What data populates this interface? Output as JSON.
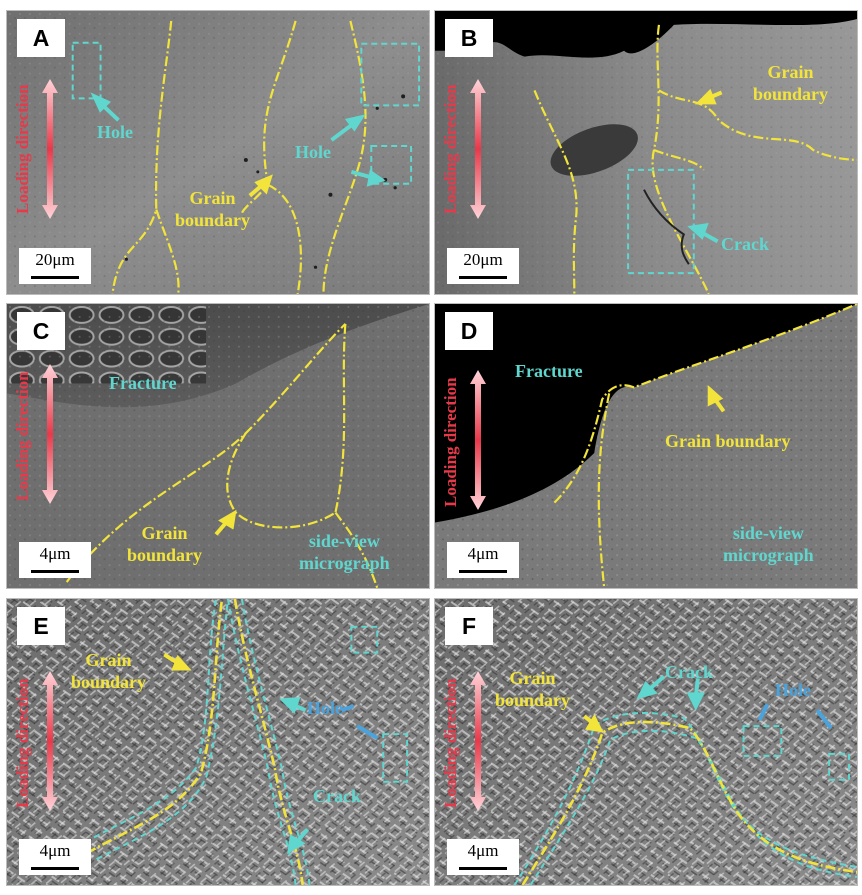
{
  "panels": {
    "A": {
      "label": "A",
      "scale": "20μm",
      "direction": "Loading direction",
      "notes": {
        "hole1": "Hole",
        "hole2": "Hole",
        "grain": "Grain\nboundary"
      }
    },
    "B": {
      "label": "B",
      "scale": "20μm",
      "direction": "Loading direction",
      "notes": {
        "grain": "Grain\nboundary",
        "crack": "Crack"
      }
    },
    "C": {
      "label": "C",
      "scale": "4μm",
      "direction": "Loading direction",
      "notes": {
        "fracture": "Fracture",
        "grain": "Grain\nboundary",
        "side": "side-view\nmicrograph"
      }
    },
    "D": {
      "label": "D",
      "scale": "4μm",
      "direction": "Loading direction",
      "notes": {
        "fracture": "Fracture",
        "grain": "Grain boundary",
        "side": "side-view\nmicrograph"
      }
    },
    "E": {
      "label": "E",
      "scale": "4μm",
      "direction": "Loading direction",
      "notes": {
        "grain": "Grain\nboundary",
        "hole": "Hole",
        "crack": "Crack"
      }
    },
    "F": {
      "label": "F",
      "scale": "4μm",
      "direction": "Loading direction",
      "notes": {
        "grain": "Grain\nboundary",
        "crack": "Crack",
        "hole": "Hole"
      }
    }
  },
  "colors": {
    "grain_boundary": "#f2e43a",
    "crack_hole": "#5fd7cf",
    "hole_blue": "#4aa3dc",
    "loading_direction": "#e8394a"
  }
}
